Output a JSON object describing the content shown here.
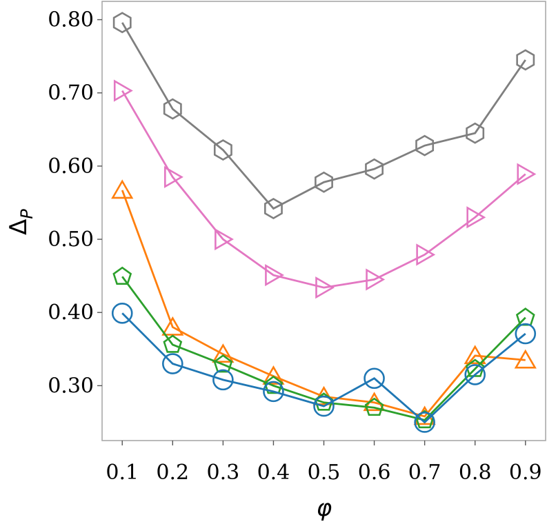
{
  "chart_data": {
    "type": "line",
    "title": "",
    "xlabel": "φ",
    "ylabel": "Δ",
    "ylabel_sub": "P",
    "x": [
      0.1,
      0.2,
      0.3,
      0.4,
      0.5,
      0.6,
      0.7,
      0.8,
      0.9
    ],
    "xlim": [
      0.06,
      0.94
    ],
    "ylim": [
      0.225,
      0.825
    ],
    "x_ticks": [
      "0.1",
      "0.2",
      "0.3",
      "0.4",
      "0.5",
      "0.6",
      "0.7",
      "0.8",
      "0.9"
    ],
    "y_ticks": [
      {
        "value": 0.3,
        "label": "0.30"
      },
      {
        "value": 0.4,
        "label": "0.40"
      },
      {
        "value": 0.5,
        "label": "0.50"
      },
      {
        "value": 0.6,
        "label": "0.60"
      },
      {
        "value": 0.7,
        "label": "0.70"
      },
      {
        "value": 0.8,
        "label": "0.80"
      }
    ],
    "grid": false,
    "legend": "none",
    "series": [
      {
        "name": "gray-hexagon",
        "color": "#7f7f7f",
        "marker": "hexagon",
        "values": [
          0.796,
          0.678,
          0.622,
          0.542,
          0.578,
          0.596,
          0.628,
          0.645,
          0.745
        ]
      },
      {
        "name": "pink-triangle-right",
        "color": "#e377c2",
        "marker": "triangle-right",
        "values": [
          0.703,
          0.585,
          0.5,
          0.451,
          0.434,
          0.445,
          0.479,
          0.53,
          0.589
        ]
      },
      {
        "name": "orange-triangle-up",
        "color": "#ff7f0e",
        "marker": "triangle-up",
        "values": [
          0.567,
          0.38,
          0.343,
          0.313,
          0.285,
          0.277,
          0.258,
          0.341,
          0.335
        ]
      },
      {
        "name": "green-pentagon",
        "color": "#2ca02c",
        "marker": "pentagon",
        "values": [
          0.449,
          0.356,
          0.329,
          0.3,
          0.277,
          0.27,
          0.253,
          0.323,
          0.393
        ]
      },
      {
        "name": "blue-circle",
        "color": "#1f77b4",
        "marker": "circle",
        "values": [
          0.399,
          0.33,
          0.308,
          0.292,
          0.272,
          0.31,
          0.25,
          0.315,
          0.371
        ]
      }
    ]
  }
}
